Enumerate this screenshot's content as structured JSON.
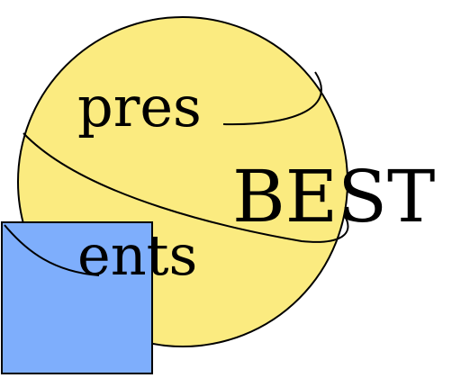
{
  "logo": {
    "word_top": "pres",
    "word_bottom": "ents",
    "word_main": "BEST",
    "colors": {
      "circle_fill": "#fbeb80",
      "square_fill": "#7eaefc",
      "stroke": "#000000",
      "background": "#ffffff"
    }
  }
}
